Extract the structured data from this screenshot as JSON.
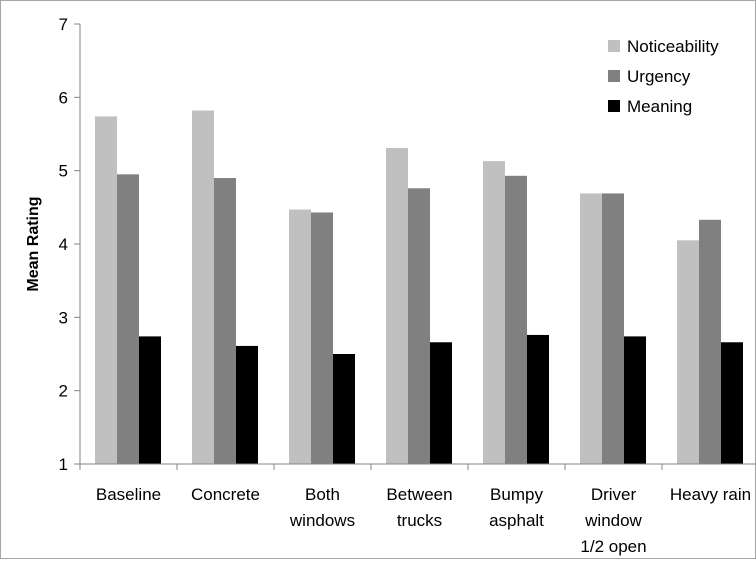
{
  "chart_data": {
    "type": "bar",
    "title": "",
    "xlabel": "",
    "ylabel": "Mean Rating",
    "ylim": [
      1,
      7
    ],
    "yticks": [
      "1",
      "2",
      "3",
      "4",
      "5",
      "6",
      "7"
    ],
    "grid": false,
    "legend_position": "top-right",
    "categories": [
      [
        "Baseline"
      ],
      [
        "Concrete"
      ],
      [
        "Both",
        "windows"
      ],
      [
        "Between",
        "trucks"
      ],
      [
        "Bumpy",
        "asphalt"
      ],
      [
        "Driver",
        "window",
        "1/2 open"
      ],
      [
        "Heavy rain"
      ]
    ],
    "series": [
      {
        "name": "Noticeability",
        "color": "#c0c0c0",
        "values": [
          5.74,
          5.82,
          4.47,
          5.31,
          5.13,
          4.69,
          4.05
        ]
      },
      {
        "name": "Urgency",
        "color": "#808080",
        "values": [
          4.95,
          4.9,
          4.43,
          4.76,
          4.93,
          4.69,
          4.33
        ]
      },
      {
        "name": "Meaning",
        "color": "#000000",
        "values": [
          2.74,
          2.61,
          2.5,
          2.66,
          2.76,
          2.74,
          2.66
        ]
      }
    ]
  }
}
